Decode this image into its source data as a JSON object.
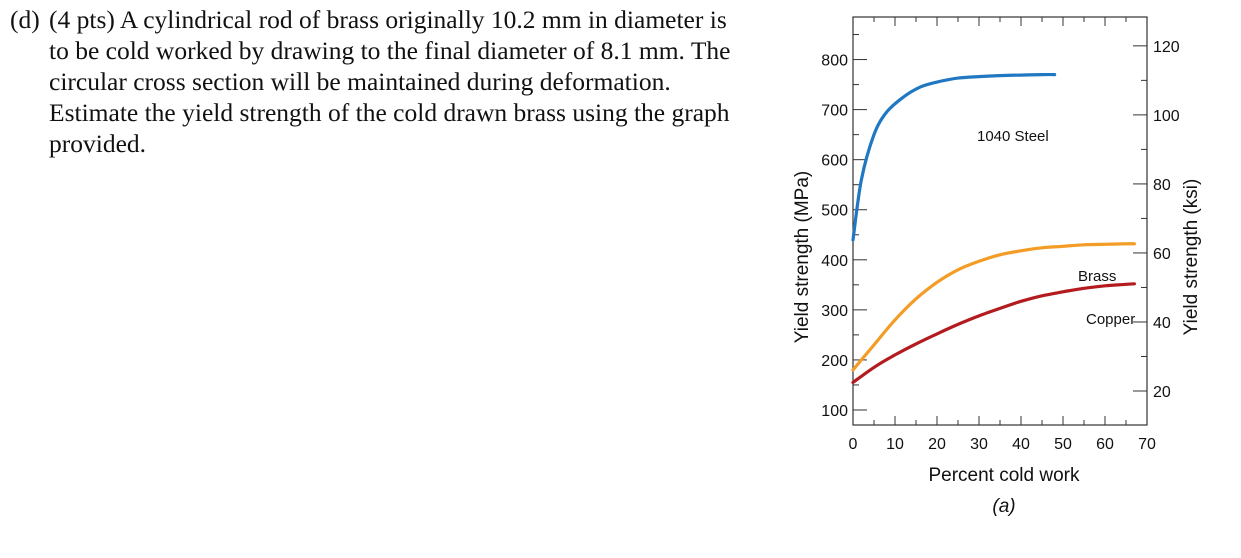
{
  "question": {
    "label": "(d)",
    "text": "(4 pts) A cylindrical rod of brass originally 10.2 mm in diameter is to be cold worked by drawing to the final diameter of 8.1 mm. The circular cross section will be maintained during deformation. Estimate the yield strength of the cold drawn brass using the graph provided."
  },
  "colors": {
    "steel": "#1f78c1",
    "brass": "#f39c26",
    "copper": "#b31b1f"
  },
  "chart_data": {
    "type": "line",
    "xlabel": "Percent cold work",
    "ylabel": "Yield strength (MPa)",
    "ylabel_right": "Yield strength (ksi)",
    "caption": "(a)",
    "xlim": [
      0,
      70
    ],
    "ylim": [
      70,
      885
    ],
    "grid": false,
    "x_ticks": [
      0,
      10,
      20,
      30,
      40,
      50,
      60,
      70
    ],
    "y_ticks": [
      100,
      200,
      300,
      400,
      500,
      600,
      700,
      800
    ],
    "y_right_ticks_ksi": [
      20,
      40,
      60,
      80,
      100,
      120
    ],
    "series": [
      {
        "name": "1040 Steel",
        "x": [
          0,
          2,
          5,
          8,
          12,
          16,
          20,
          25,
          30,
          35,
          40,
          45,
          48
        ],
        "y": [
          440,
          560,
          650,
          695,
          725,
          745,
          755,
          763,
          766,
          768,
          769,
          770,
          770
        ]
      },
      {
        "name": "Brass",
        "x": [
          0,
          5,
          10,
          15,
          20,
          25,
          30,
          35,
          40,
          45,
          50,
          55,
          60,
          65,
          67
        ],
        "y": [
          180,
          230,
          280,
          322,
          355,
          380,
          397,
          410,
          418,
          424,
          427,
          430,
          431,
          432,
          432
        ]
      },
      {
        "name": "Copper",
        "x": [
          0,
          5,
          10,
          15,
          20,
          25,
          30,
          35,
          40,
          45,
          50,
          55,
          60,
          65,
          67
        ],
        "y": [
          155,
          185,
          210,
          232,
          252,
          271,
          288,
          303,
          317,
          328,
          336,
          343,
          348,
          351,
          352
        ]
      }
    ]
  }
}
